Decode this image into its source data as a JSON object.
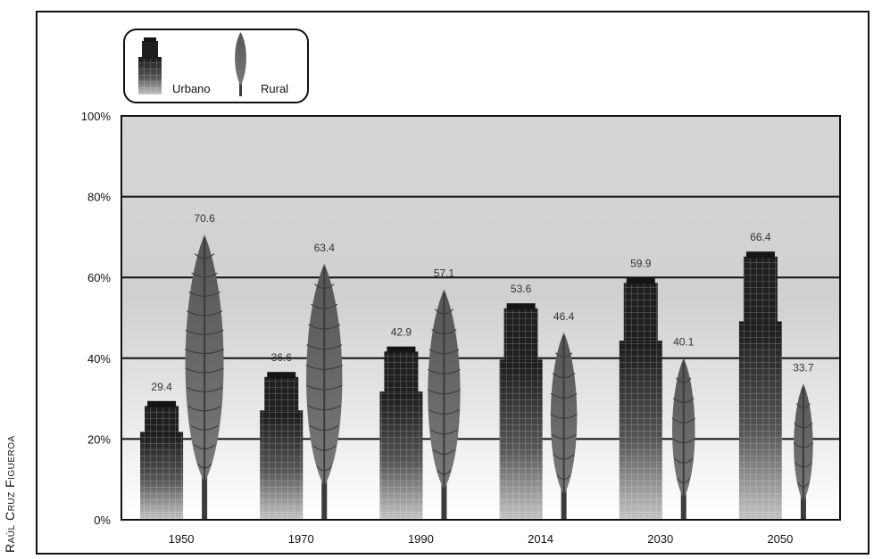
{
  "credit": "Raúl Cruz Figueroa",
  "chart_data": {
    "type": "bar",
    "title": "",
    "xlabel": "",
    "ylabel": "",
    "ylim": [
      0,
      100
    ],
    "yticks": [
      "0%",
      "20%",
      "40%",
      "60%",
      "80%",
      "100%"
    ],
    "grid": true,
    "legend_position": "top-left",
    "categories": [
      "1950",
      "1970",
      "1990",
      "2014",
      "2030",
      "2050"
    ],
    "series": [
      {
        "name": "Urbano",
        "values": [
          29.4,
          36.6,
          42.9,
          53.6,
          59.9,
          66.4
        ],
        "labels": [
          "29.4",
          "36.6",
          "42.9",
          "53.6",
          "59.9",
          "66.4"
        ],
        "icon": "building-icon"
      },
      {
        "name": "Rural",
        "values": [
          70.6,
          63.4,
          57.1,
          46.4,
          40.1,
          33.7
        ],
        "labels": [
          "70.6",
          "63.4",
          "57.1",
          "46.4",
          "40.1",
          "33.7"
        ],
        "icon": "cypress-tree-icon"
      }
    ],
    "colors": {
      "building_dark": "#1e1e1e",
      "building_light": "#bdbdbd",
      "tree_dark": "#4a4a4a",
      "tree_light": "#8a8a8a",
      "band_top": "#d4d4d4",
      "band_bottom": "#ffffff"
    }
  }
}
